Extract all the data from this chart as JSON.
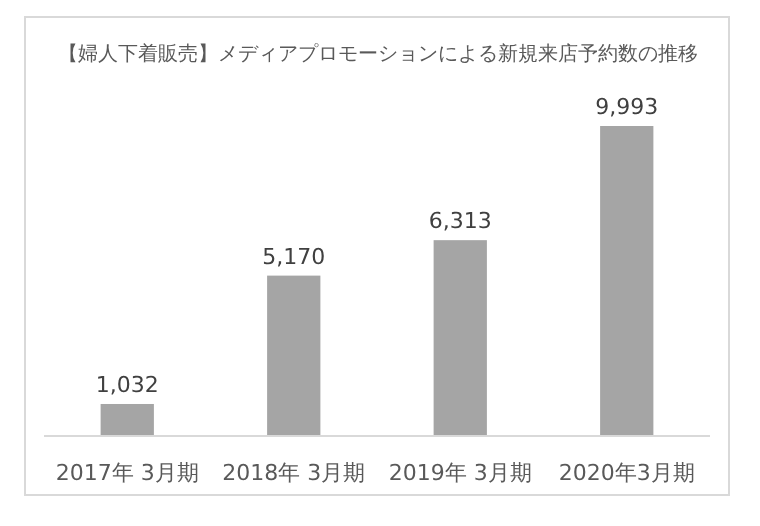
{
  "chart_data": {
    "type": "bar",
    "title": "【婦人下着販売】メディアプロモーションによる新規来店予約数の推移",
    "categories": [
      "2017年 3月期",
      "2018年 3月期",
      "2019年 3月期",
      "2020年3月期"
    ],
    "values": [
      1032,
      5170,
      6313,
      9993
    ],
    "color": "#a5a5a5",
    "value_labels": [
      "1,032",
      "5,170",
      "6,313",
      "9,993"
    ]
  }
}
